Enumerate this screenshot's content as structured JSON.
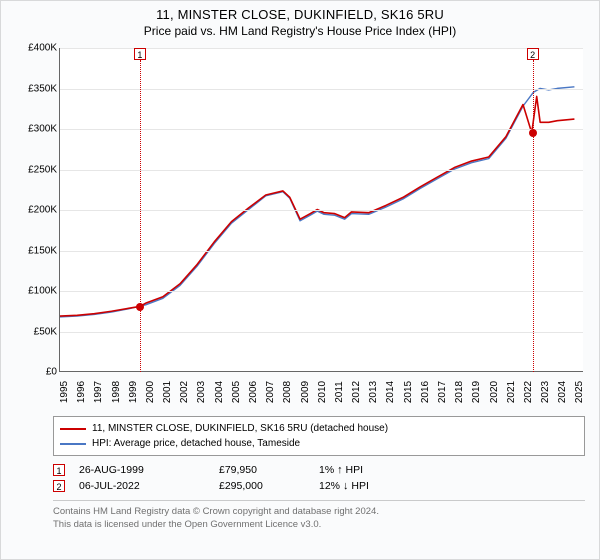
{
  "title": "11, MINSTER CLOSE, DUKINFIELD, SK16 5RU",
  "subtitle": "Price paid vs. HM Land Registry's House Price Index (HPI)",
  "chart": {
    "type": "line",
    "background_color": "#ffffff",
    "grid_color": "#e6e6e6",
    "axis_color": "#666666",
    "y": {
      "min": 0,
      "max": 400000,
      "ticks": [
        0,
        50000,
        100000,
        150000,
        200000,
        250000,
        300000,
        350000,
        400000
      ],
      "tick_labels": [
        "£0",
        "£50K",
        "£100K",
        "£150K",
        "£200K",
        "£250K",
        "£300K",
        "£350K",
        "£400K"
      ],
      "label_fontsize": 10
    },
    "x": {
      "min": 1995,
      "max": 2025.5,
      "ticks": [
        1995,
        1996,
        1997,
        1998,
        1999,
        2000,
        2001,
        2002,
        2003,
        2004,
        2005,
        2006,
        2007,
        2008,
        2009,
        2010,
        2011,
        2012,
        2013,
        2014,
        2015,
        2016,
        2017,
        2018,
        2019,
        2020,
        2021,
        2022,
        2023,
        2024,
        2025
      ],
      "label_fontsize": 10
    },
    "series": [
      {
        "name": "price_paid",
        "label": "11, MINSTER CLOSE, DUKINFIELD, SK16 5RU (detached house)",
        "color": "#cc0000",
        "line_width": 1.6,
        "data": [
          [
            1995,
            68000
          ],
          [
            1996,
            69000
          ],
          [
            1997,
            71000
          ],
          [
            1998,
            74000
          ],
          [
            1999.65,
            79950
          ],
          [
            2000,
            84000
          ],
          [
            2001,
            92000
          ],
          [
            2002,
            108000
          ],
          [
            2003,
            132000
          ],
          [
            2004,
            160000
          ],
          [
            2005,
            185000
          ],
          [
            2006,
            202000
          ],
          [
            2007,
            218000
          ],
          [
            2008,
            223000
          ],
          [
            2008.4,
            215000
          ],
          [
            2009,
            188000
          ],
          [
            2009.6,
            195000
          ],
          [
            2010,
            200000
          ],
          [
            2010.4,
            196000
          ],
          [
            2011,
            195000
          ],
          [
            2011.6,
            190000
          ],
          [
            2012,
            197000
          ],
          [
            2013,
            196000
          ],
          [
            2014,
            205000
          ],
          [
            2015,
            215000
          ],
          [
            2016,
            228000
          ],
          [
            2017,
            240000
          ],
          [
            2018,
            252000
          ],
          [
            2019,
            260000
          ],
          [
            2020,
            265000
          ],
          [
            2021,
            290000
          ],
          [
            2022,
            330000
          ],
          [
            2022.51,
            295000
          ],
          [
            2022.8,
            340000
          ],
          [
            2023,
            308000
          ],
          [
            2023.5,
            308000
          ],
          [
            2024,
            310000
          ],
          [
            2025,
            312000
          ]
        ]
      },
      {
        "name": "hpi",
        "label": "HPI: Average price, detached house, Tameside",
        "color": "#4a77c4",
        "line_width": 1.4,
        "data": [
          [
            1995,
            67000
          ],
          [
            1996,
            68000
          ],
          [
            1997,
            70000
          ],
          [
            1998,
            73000
          ],
          [
            1999,
            77000
          ],
          [
            2000,
            82000
          ],
          [
            2001,
            90000
          ],
          [
            2002,
            106000
          ],
          [
            2003,
            130000
          ],
          [
            2004,
            158000
          ],
          [
            2005,
            183000
          ],
          [
            2006,
            200000
          ],
          [
            2007,
            217000
          ],
          [
            2008,
            222000
          ],
          [
            2008.4,
            214000
          ],
          [
            2009,
            186000
          ],
          [
            2009.6,
            193000
          ],
          [
            2010,
            198000
          ],
          [
            2010.4,
            194000
          ],
          [
            2011,
            193000
          ],
          [
            2011.6,
            188000
          ],
          [
            2012,
            195000
          ],
          [
            2013,
            194000
          ],
          [
            2014,
            203000
          ],
          [
            2015,
            213000
          ],
          [
            2016,
            226000
          ],
          [
            2017,
            238000
          ],
          [
            2018,
            250000
          ],
          [
            2019,
            258000
          ],
          [
            2020,
            263000
          ],
          [
            2021,
            288000
          ],
          [
            2022,
            328000
          ],
          [
            2022.6,
            345000
          ],
          [
            2023,
            350000
          ],
          [
            2023.5,
            348000
          ],
          [
            2024,
            350000
          ],
          [
            2025,
            352000
          ]
        ]
      }
    ],
    "sale_markers": [
      {
        "n": "1",
        "year": 1999.65,
        "value": 79950
      },
      {
        "n": "2",
        "year": 2022.51,
        "value": 295000
      }
    ],
    "marker_box_color": "#cc0000",
    "marker_line_style": "dotted"
  },
  "legend": {
    "border_color": "#999999",
    "fontsize": 10,
    "items": [
      {
        "color": "#cc0000",
        "label": "11, MINSTER CLOSE, DUKINFIELD, SK16 5RU (detached house)"
      },
      {
        "color": "#4a77c4",
        "label": "HPI: Average price, detached house, Tameside"
      }
    ]
  },
  "sales": [
    {
      "n": "1",
      "date": "26-AUG-1999",
      "price": "£79,950",
      "delta_pct": "1%",
      "delta_dir": "↑",
      "delta_suffix": "HPI"
    },
    {
      "n": "2",
      "date": "06-JUL-2022",
      "price": "£295,000",
      "delta_pct": "12%",
      "delta_dir": "↓",
      "delta_suffix": "HPI"
    }
  ],
  "footer": {
    "line1": "Contains HM Land Registry data © Crown copyright and database right 2024.",
    "line2": "This data is licensed under the Open Government Licence v3.0.",
    "color": "#707070"
  }
}
